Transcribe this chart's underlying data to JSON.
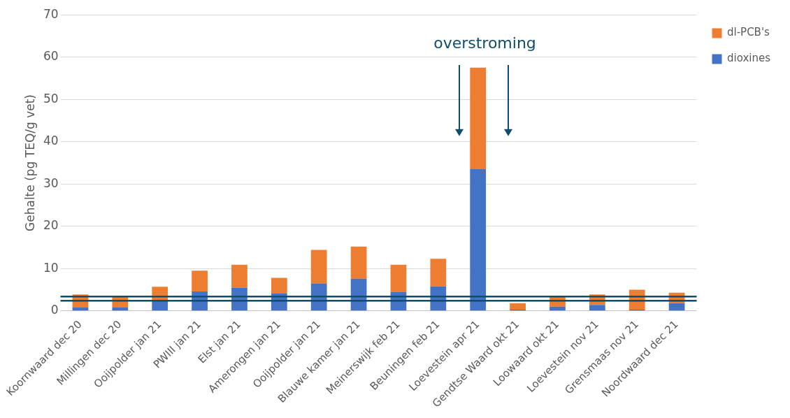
{
  "chart_data": {
    "type": "bar",
    "stacked": true,
    "ylabel": "Gehalte (pg TEQ/g vet)",
    "categories": [
      "Koornwaard dec 20",
      "Millingen dec 20",
      "Ooijpolder jan 21",
      "PWIII jan 21",
      "Elst jan 21",
      "Amerongen jan 21",
      "Ooijpolder jan 21",
      "Blauwe kamer jan 21",
      "Meinerswijk feb 21",
      "Beuningen feb 21",
      "Loevestein apr 21",
      "Gendtse Waard okt 21",
      "Loowaard okt 21",
      "Loevestein nov 21",
      "Grensmaas nov 21",
      "Noordwaard dec 21"
    ],
    "series": [
      {
        "name": "dioxines",
        "color": "#4472c4",
        "values": [
          0.8,
          0.8,
          2.3,
          4.6,
          5.5,
          4.1,
          6.4,
          7.6,
          4.4,
          5.8,
          33.5,
          0.3,
          1.0,
          1.4,
          0.3,
          1.8
        ]
      },
      {
        "name": "dl-PCB's",
        "color": "#ed7d31",
        "values": [
          3.1,
          2.6,
          3.4,
          4.9,
          5.4,
          3.7,
          8.0,
          7.6,
          6.5,
          6.5,
          24.0,
          1.5,
          2.5,
          2.5,
          4.7,
          2.5
        ]
      }
    ],
    "ylim": [
      0,
      70
    ],
    "yticks": [
      0,
      10,
      20,
      30,
      40,
      50,
      60,
      70
    ],
    "grid": "y",
    "legend": "top right",
    "ref_lines": [
      {
        "axis": "y",
        "value": 3.4,
        "color": "#0e4d6b"
      },
      {
        "axis": "y",
        "value": 2.4,
        "color": "#0e4d6b"
      }
    ],
    "annotations": [
      "overstroming"
    ]
  }
}
